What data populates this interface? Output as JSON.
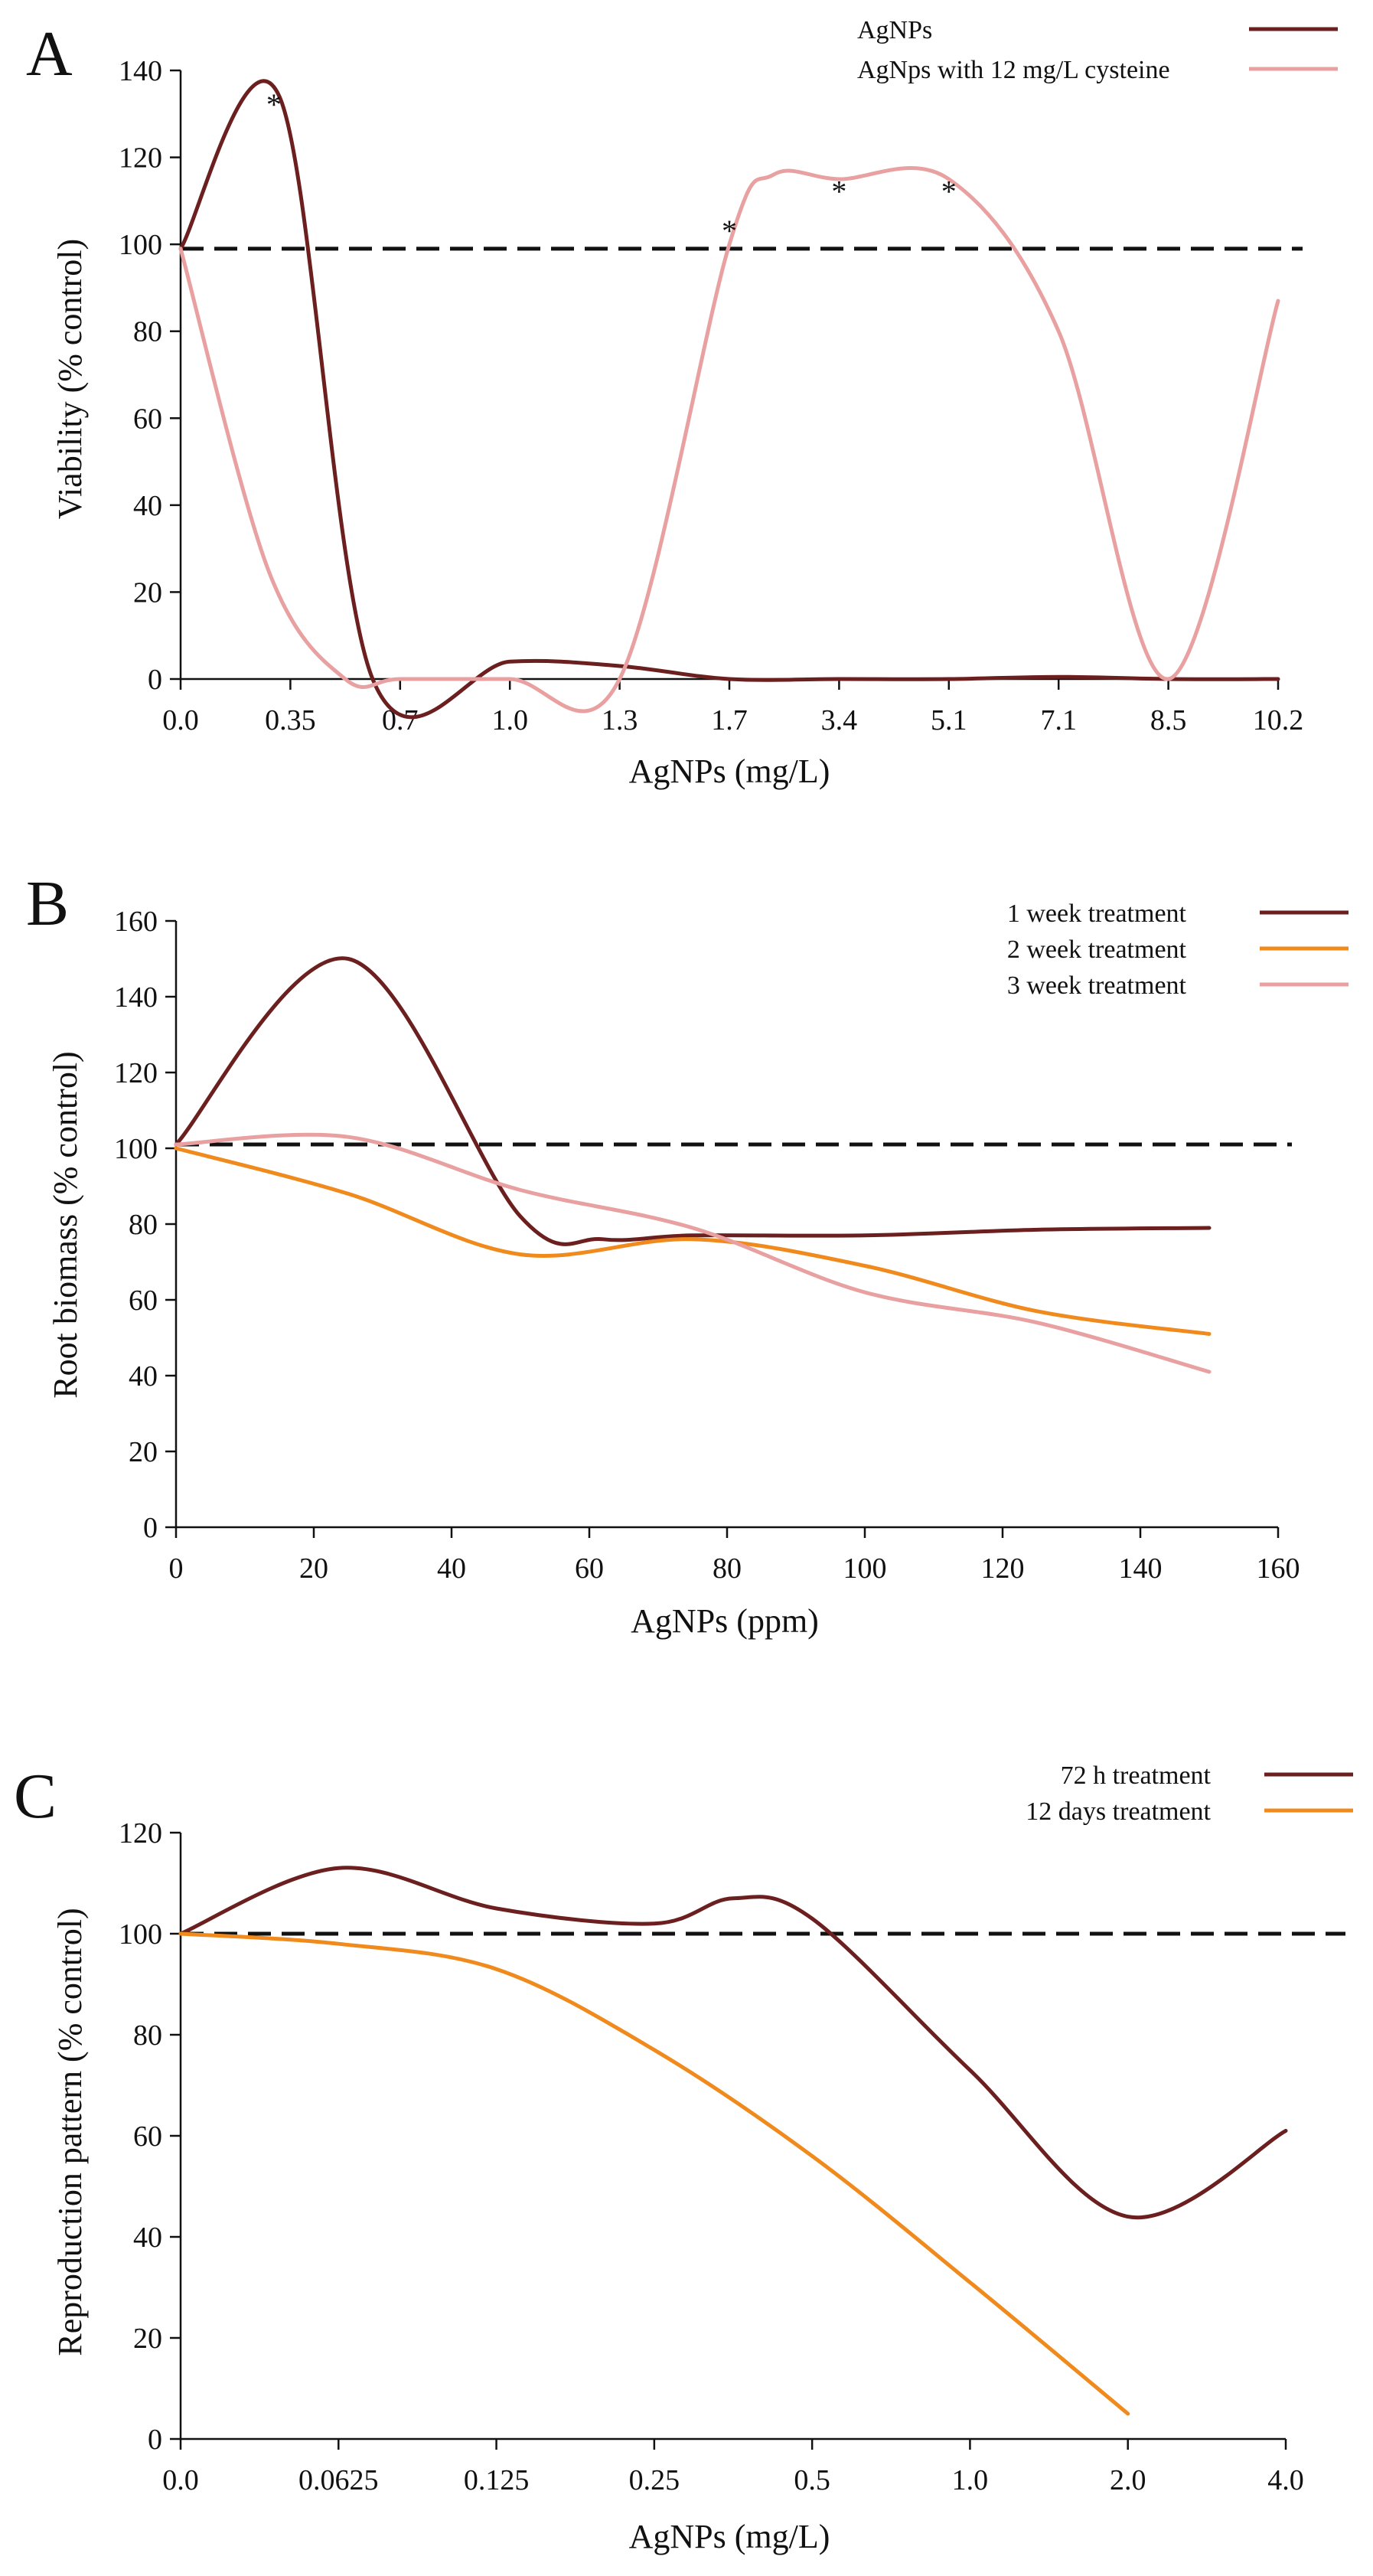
{
  "chart_data": [
    {
      "panel": "A",
      "type": "line",
      "xlabel": "AgNPs (mg/L)",
      "ylabel": "Viability (% control)",
      "categories": [
        "0.0",
        "0.35",
        "0.7",
        "1.0",
        "1.3",
        "1.7",
        "3.4",
        "5.1",
        "7.1",
        "8.5",
        "10.2"
      ],
      "ylim": [
        0,
        140
      ],
      "yticks": [
        0,
        20,
        40,
        60,
        80,
        100,
        120,
        140
      ],
      "reference_line": 99,
      "series": [
        {
          "name": "AgNPs",
          "color": "#6b1f1f",
          "x": [
            0,
            0.9,
            1.75,
            3,
            4,
            5,
            6,
            7,
            8,
            9,
            10
          ],
          "values": [
            99,
            134,
            0,
            4,
            3,
            0,
            0,
            0,
            0.5,
            0,
            0
          ]
        },
        {
          "name": "AgNps with 12 mg/L cysteine",
          "color": "#e8a0a0",
          "x": [
            0,
            0.8,
            1.5,
            2,
            3,
            4,
            5,
            5.4,
            6,
            7,
            8,
            9,
            10
          ],
          "values": [
            99,
            25,
            0,
            0,
            0,
            0,
            100,
            116,
            115,
            115,
            80,
            0,
            87
          ]
        }
      ],
      "annotations": [
        {
          "text": "*",
          "x": 0.85,
          "y": 134
        },
        {
          "text": "*",
          "x": 5,
          "y": 105
        },
        {
          "text": "*",
          "x": 6,
          "y": 114
        },
        {
          "text": "*",
          "x": 7,
          "y": 114
        }
      ],
      "legend_position": "top-right"
    },
    {
      "panel": "B",
      "type": "line",
      "xlabel": "AgNPs (ppm)",
      "ylabel": "Root biomass (% control)",
      "xlim": [
        0,
        160
      ],
      "xticks": [
        0,
        20,
        40,
        60,
        80,
        100,
        120,
        140,
        160
      ],
      "ylim": [
        0,
        160
      ],
      "yticks": [
        0,
        20,
        40,
        60,
        80,
        100,
        120,
        140,
        160
      ],
      "reference_line": 101,
      "series": [
        {
          "name": "1 week treatment",
          "color": "#6b1f1f",
          "x": [
            0,
            25,
            50,
            62,
            75,
            100,
            125,
            150
          ],
          "values": [
            101,
            150,
            82,
            76,
            77,
            77,
            78.5,
            79
          ]
        },
        {
          "name": "2 week treatment",
          "color": "#f08a1c",
          "x": [
            0,
            25,
            50,
            75,
            100,
            125,
            150
          ],
          "values": [
            100,
            88,
            72,
            76,
            69,
            57,
            51
          ]
        },
        {
          "name": "3 week treatment",
          "color": "#e8a0a0",
          "x": [
            0,
            25,
            50,
            75,
            100,
            125,
            150
          ],
          "values": [
            101,
            103,
            89,
            79,
            62,
            54,
            41
          ]
        }
      ],
      "legend_position": "top-right"
    },
    {
      "panel": "C",
      "type": "line",
      "xlabel": "AgNPs (mg/L)",
      "ylabel": "Reproduction pattern (% control)",
      "categories": [
        "0.0",
        "0.0625",
        "0.125",
        "0.25",
        "0.5",
        "1.0",
        "2.0",
        "4.0"
      ],
      "ylim": [
        0,
        120
      ],
      "yticks": [
        0,
        20,
        40,
        60,
        80,
        100,
        120
      ],
      "reference_line": 100,
      "series": [
        {
          "name": "72 h treatment",
          "color": "#6b1f1f",
          "x": [
            0,
            1,
            2,
            3,
            3.5,
            4,
            5,
            6,
            7
          ],
          "values": [
            100,
            113,
            105,
            102,
            107,
            103,
            73,
            44,
            61
          ]
        },
        {
          "name": "12 days treatment",
          "color": "#f08a1c",
          "x": [
            0,
            1,
            2,
            3,
            4,
            5,
            6
          ],
          "values": [
            100,
            98,
            93,
            77,
            56,
            31,
            5
          ]
        }
      ],
      "legend_position": "top-right"
    }
  ]
}
